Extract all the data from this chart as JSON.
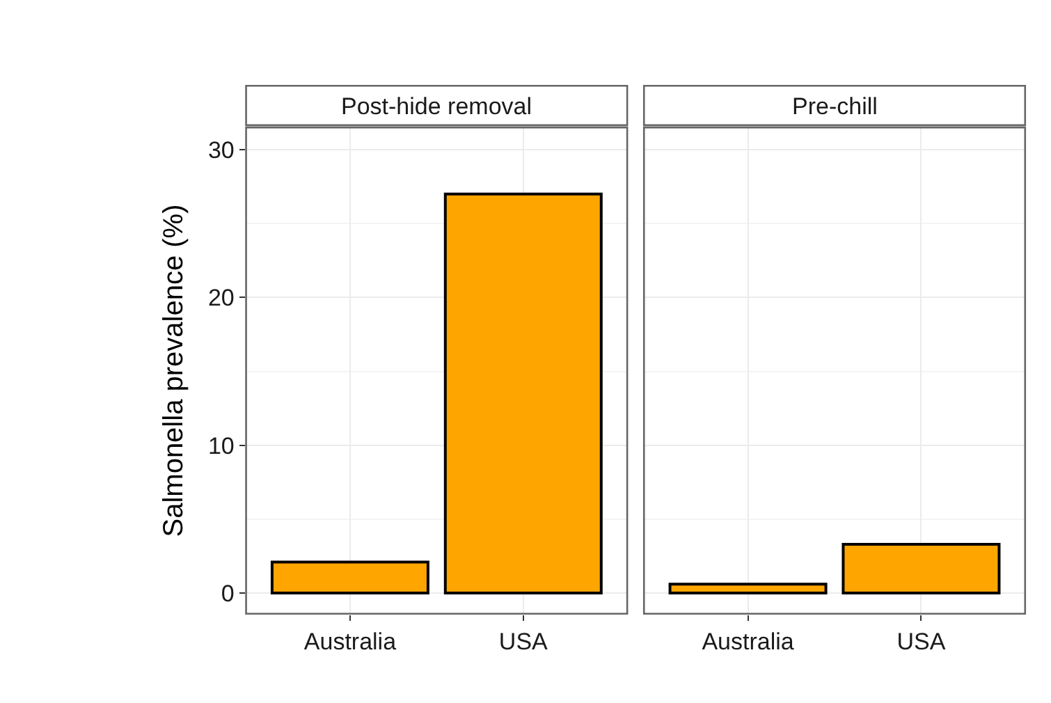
{
  "chart_data": [
    {
      "type": "bar",
      "title": "Post-hide removal",
      "ylabel": "Salmonella prevalence (%)",
      "categories": [
        "Australia",
        "USA"
      ],
      "values": [
        2.1,
        27.0
      ],
      "color": "#ffa500",
      "ylim": [
        -1.4,
        31.5
      ],
      "yticks": [
        0,
        10,
        20,
        30
      ],
      "grid": true
    },
    {
      "type": "bar",
      "title": "Pre-chill",
      "categories": [
        "Australia",
        "USA"
      ],
      "values": [
        0.6,
        3.3
      ],
      "color": "#ffa500",
      "ylim": [
        -1.4,
        31.5
      ],
      "yticks": [
        0,
        10,
        20,
        30
      ],
      "grid": true,
      "tick_labels": "x"
    }
  ]
}
